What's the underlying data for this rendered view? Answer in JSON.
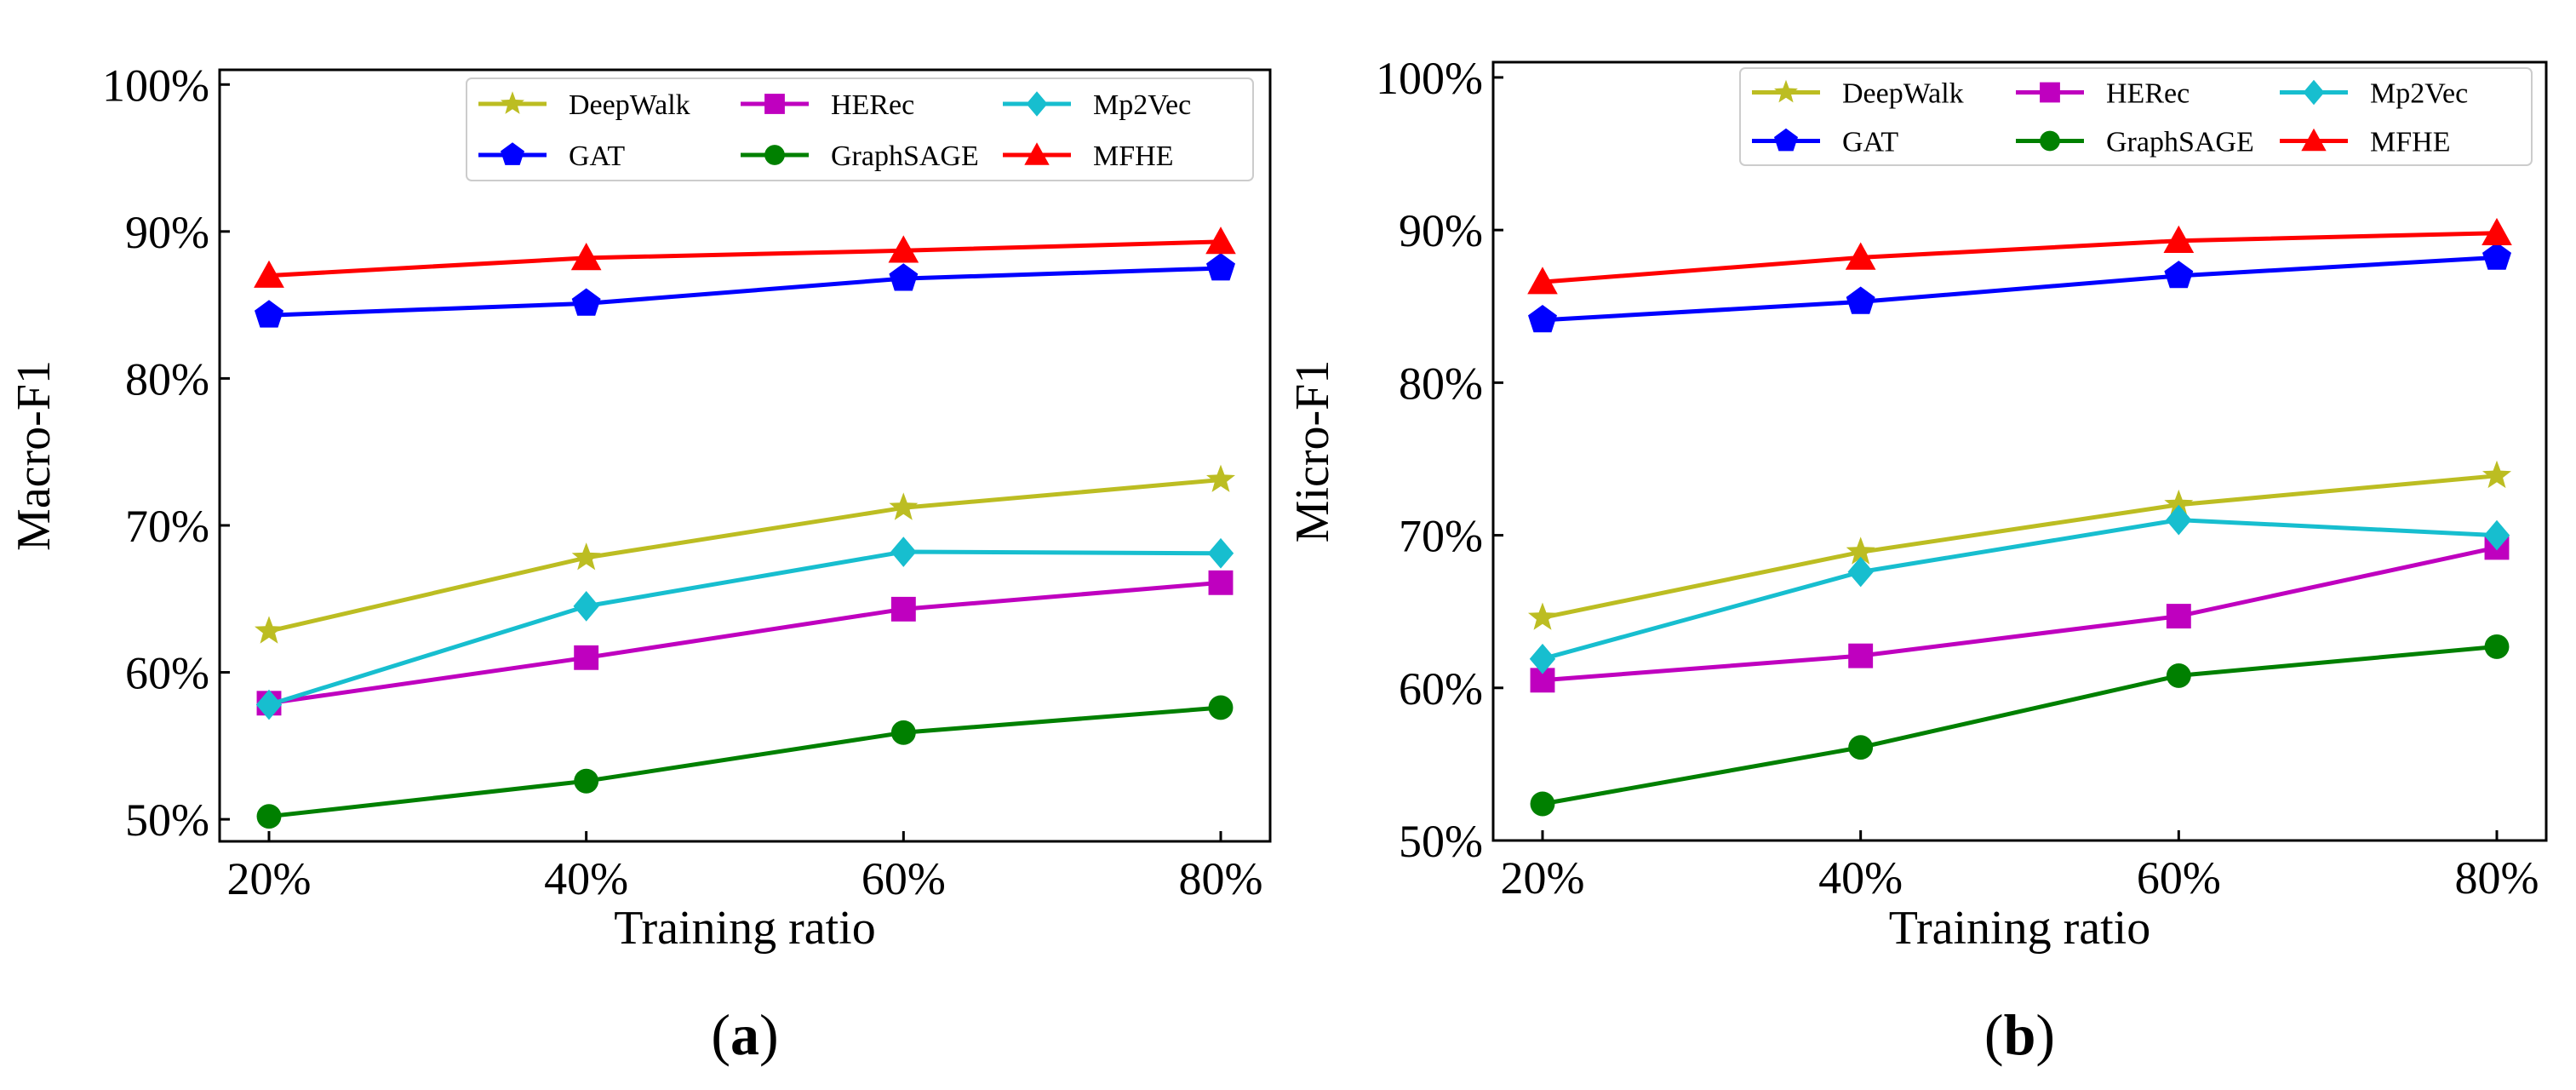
{
  "chart_data": [
    {
      "type": "line",
      "panel_label": "(a)",
      "xlabel": "Training ratio",
      "ylabel": "Macro-F1",
      "categories": [
        "20%",
        "40%",
        "60%",
        "80%"
      ],
      "ylim": [
        48.5,
        101
      ],
      "yticks": [
        50,
        60,
        70,
        80,
        90,
        100
      ],
      "ytick_labels": [
        "50%",
        "60%",
        "70%",
        "80%",
        "90%",
        "100%"
      ],
      "legend_position": "top-right",
      "series": [
        {
          "name": "DeepWalk",
          "color": "#bcbd22",
          "marker": "star",
          "values": [
            62.8,
            67.8,
            71.2,
            73.1
          ]
        },
        {
          "name": "GAT",
          "color": "#0000ff",
          "marker": "pentagon",
          "values": [
            84.3,
            85.1,
            86.8,
            87.5
          ]
        },
        {
          "name": "HERec",
          "color": "#bf00bf",
          "marker": "square",
          "values": [
            57.9,
            61.0,
            64.3,
            66.1
          ]
        },
        {
          "name": "GraphSAGE",
          "color": "#008000",
          "marker": "circle",
          "values": [
            50.2,
            52.6,
            55.9,
            57.6
          ]
        },
        {
          "name": "Mp2Vec",
          "color": "#17becf",
          "marker": "diamond",
          "values": [
            57.8,
            64.5,
            68.2,
            68.1
          ]
        },
        {
          "name": "MFHE",
          "color": "#ff0000",
          "marker": "triangle",
          "values": [
            87.0,
            88.2,
            88.7,
            89.3
          ]
        }
      ]
    },
    {
      "type": "line",
      "panel_label": "(b)",
      "xlabel": "Training ratio",
      "ylabel": "Micro-F1",
      "categories": [
        "20%",
        "40%",
        "60%",
        "80%"
      ],
      "ylim": [
        50,
        101
      ],
      "yticks": [
        50,
        60,
        70,
        80,
        90,
        100
      ],
      "ytick_labels": [
        "50%",
        "60%",
        "70%",
        "80%",
        "90%",
        "100%"
      ],
      "legend_position": "top-right",
      "series": [
        {
          "name": "DeepWalk",
          "color": "#bcbd22",
          "marker": "star",
          "values": [
            64.6,
            68.9,
            72.0,
            73.9
          ]
        },
        {
          "name": "GAT",
          "color": "#0000ff",
          "marker": "pentagon",
          "values": [
            84.1,
            85.3,
            87.0,
            88.2
          ]
        },
        {
          "name": "HERec",
          "color": "#bf00bf",
          "marker": "square",
          "values": [
            60.5,
            62.1,
            64.7,
            69.2
          ]
        },
        {
          "name": "GraphSAGE",
          "color": "#008000",
          "marker": "circle",
          "values": [
            52.4,
            56.1,
            60.8,
            62.7
          ]
        },
        {
          "name": "Mp2Vec",
          "color": "#17becf",
          "marker": "diamond",
          "values": [
            61.9,
            67.6,
            71.0,
            70.0
          ]
        },
        {
          "name": "MFHE",
          "color": "#ff0000",
          "marker": "triangle",
          "values": [
            86.6,
            88.2,
            89.3,
            89.8
          ]
        }
      ]
    }
  ]
}
